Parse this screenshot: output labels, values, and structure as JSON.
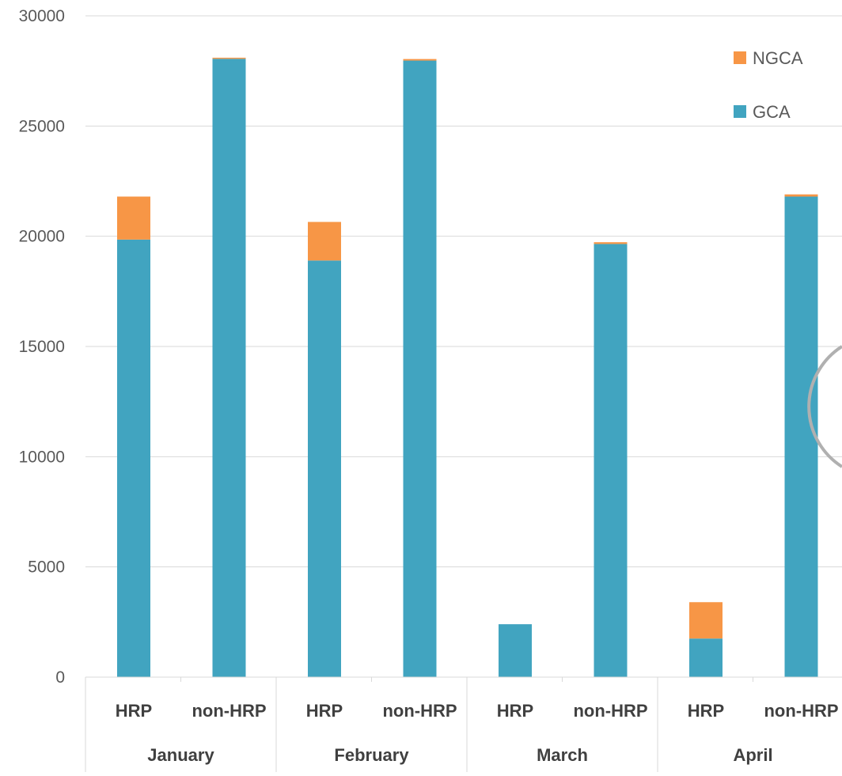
{
  "chart_data": {
    "type": "bar",
    "stacked": true,
    "title": "",
    "xlabel": "",
    "ylabel": "",
    "ylim": [
      0,
      30000
    ],
    "yticks": [
      0,
      5000,
      10000,
      15000,
      20000,
      25000,
      30000
    ],
    "grid": true,
    "legend": {
      "position": "top-right",
      "order": [
        "NGCA",
        "GCA"
      ]
    },
    "groups": [
      {
        "label": "January",
        "categories": [
          "HRP",
          "non-HRP"
        ]
      },
      {
        "label": "February",
        "categories": [
          "HRP",
          "non-HRP"
        ]
      },
      {
        "label": "March",
        "categories": [
          "HRP",
          "non-HRP"
        ]
      },
      {
        "label": "April",
        "categories": [
          "HRP",
          "non-HRP"
        ]
      }
    ],
    "categories": [
      "HRP",
      "non-HRP",
      "HRP",
      "non-HRP",
      "HRP",
      "non-HRP",
      "HRP",
      "non-HRP"
    ],
    "series": [
      {
        "name": "GCA",
        "color": "#41A4C0",
        "values": [
          19850,
          28050,
          18900,
          27970,
          2400,
          19650,
          1750,
          21800
        ]
      },
      {
        "name": "NGCA",
        "color": "#F79646",
        "values": [
          1950,
          50,
          1750,
          70,
          0,
          80,
          1650,
          100
        ]
      }
    ]
  }
}
